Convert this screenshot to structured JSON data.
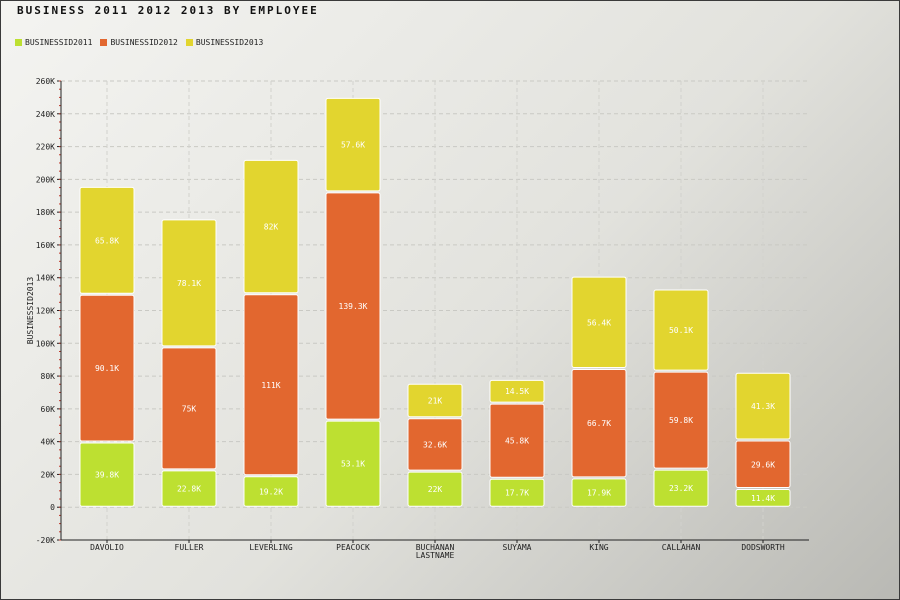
{
  "title": "Business 2011 2012 2013 by  Employee",
  "legend": [
    {
      "label": "BusinessID2011",
      "color": "#bde031"
    },
    {
      "label": "BusinessID2012",
      "color": "#e2672f"
    },
    {
      "label": "BusinessID2013",
      "color": "#e2d52f"
    }
  ],
  "chart_data": {
    "type": "bar",
    "stacked": true,
    "ylabel": "BusinessID2013",
    "ylim": [
      -20000,
      260000
    ],
    "yticks": [
      -20000,
      0,
      20000,
      40000,
      60000,
      80000,
      100000,
      120000,
      140000,
      160000,
      180000,
      200000,
      220000,
      240000,
      260000
    ],
    "ytick_labels": [
      "-20K",
      "0",
      "20K",
      "40K",
      "60K",
      "80K",
      "100K",
      "120K",
      "140K",
      "160K",
      "180K",
      "200K",
      "220K",
      "240K",
      "260K"
    ],
    "categories": [
      "Davolio",
      "Fuller",
      "Leverling",
      "Peacock",
      "Buchanan LastName",
      "Suyama",
      "King",
      "Callahan",
      "Dodsworth"
    ],
    "series": [
      {
        "name": "BusinessID2011",
        "color": "#bde031",
        "values": [
          39800,
          22800,
          19200,
          53100,
          22000,
          17700,
          17900,
          23200,
          11400
        ],
        "labels": [
          "39.8K",
          "22.8K",
          "19.2K",
          "53.1K",
          "22K",
          "17.7K",
          "17.9K",
          "23.2K",
          "11.4K"
        ]
      },
      {
        "name": "BusinessID2012",
        "color": "#e2672f",
        "values": [
          90100,
          75000,
          111000,
          139300,
          32600,
          45800,
          66700,
          59800,
          29600
        ],
        "labels": [
          "90.1K",
          "75K",
          "111K",
          "139.3K",
          "32.6K",
          "45.8K",
          "66.7K",
          "59.8K",
          "29.6K"
        ]
      },
      {
        "name": "BusinessID2013",
        "color": "#e2d52f",
        "values": [
          65800,
          78100,
          82000,
          57600,
          21000,
          14500,
          56400,
          50100,
          41300
        ],
        "labels": [
          "65.8K",
          "78.1K",
          "82K",
          "57.6K",
          "21K",
          "14.5K",
          "56.4K",
          "50.1K",
          "41.3K"
        ]
      }
    ],
    "grid": true
  }
}
